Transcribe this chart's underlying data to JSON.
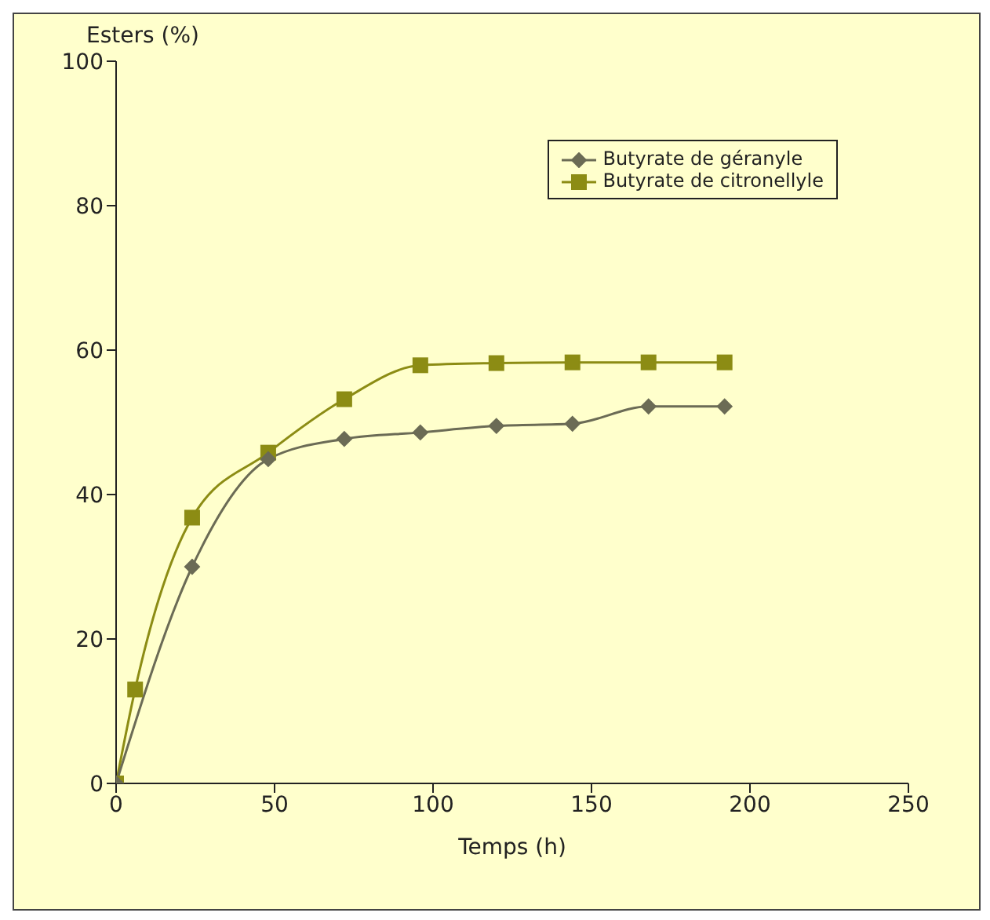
{
  "chart_data": {
    "type": "line",
    "ylabel": "Esters (%)",
    "xlabel": "Temps (h)",
    "xlim": [
      0,
      250
    ],
    "xticks": [
      0,
      50,
      100,
      150,
      200,
      250
    ],
    "ylim": [
      0,
      100
    ],
    "yticks": [
      0,
      20,
      40,
      60,
      80,
      100
    ],
    "legend": "top right",
    "series": [
      {
        "name": "Butyrate de géranyle",
        "color": "#6b6b55",
        "marker": "diamond",
        "x": [
          0,
          24,
          48,
          72,
          96,
          120,
          144,
          168,
          192
        ],
        "values": [
          0,
          30,
          44.9,
          47.7,
          48.6,
          49.5,
          49.8,
          52.2,
          52.2
        ]
      },
      {
        "name": "Butyrate de citronellyle",
        "color": "#8c8c14",
        "marker": "square",
        "x": [
          0,
          6,
          24,
          48,
          72,
          96,
          120,
          144,
          168,
          192
        ],
        "values": [
          0,
          13,
          36.8,
          45.8,
          53.2,
          57.9,
          58.2,
          58.3,
          58.3,
          58.3
        ]
      }
    ]
  }
}
